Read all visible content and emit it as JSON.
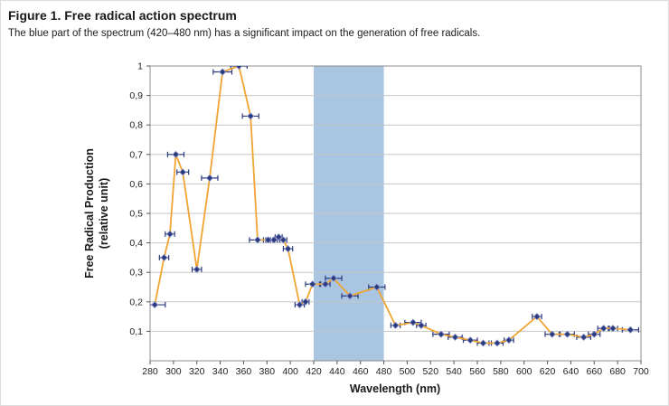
{
  "figure": {
    "title": "Figure 1. Free radical action spectrum",
    "subtitle": "The blue part of the spectrum (420–480 nm) has a significant impact on the generation of free radicals."
  },
  "chart_data": {
    "type": "line",
    "title": "Free radical action spectrum",
    "xlabel": "Wavelength (nm)",
    "ylabel": "Free Radical Production",
    "ylabel_line2": "(relative unit)",
    "xlim": [
      280,
      700
    ],
    "ylim": [
      0,
      1
    ],
    "x_ticks": [
      280,
      300,
      320,
      340,
      360,
      380,
      400,
      420,
      440,
      460,
      480,
      500,
      520,
      540,
      560,
      580,
      600,
      620,
      640,
      660,
      680,
      700
    ],
    "y_ticks": [
      0.1,
      0.2,
      0.3,
      0.4,
      0.5,
      0.6,
      0.7,
      0.8,
      0.9,
      1
    ],
    "y_tick_labels": [
      "0,1",
      "0,2",
      "0,3",
      "0,4",
      "0,5",
      "0,6",
      "0,7",
      "0,8",
      "0,9",
      "1"
    ],
    "grid": true,
    "legend": "none",
    "highlight_band": {
      "x_start": 420,
      "x_end": 480,
      "color": "#a9c5e2",
      "label": "blue part of the spectrum (420–480 nm)"
    },
    "colors": {
      "line": "#f0a432",
      "marker": "#2a3b7d",
      "marker_edge": "#8891c9",
      "grid": "#c6c6c6",
      "frame": "#8c8c8c"
    },
    "series": [
      {
        "name": "Free radical production (relative unit)",
        "marker": "diamond",
        "error_bars": "horizontal",
        "points": [
          {
            "x": 284,
            "y": 0.19,
            "xerr": 9
          },
          {
            "x": 292,
            "y": 0.35,
            "xerr": 4
          },
          {
            "x": 297,
            "y": 0.43,
            "xerr": 4
          },
          {
            "x": 302,
            "y": 0.7,
            "xerr": 7
          },
          {
            "x": 308,
            "y": 0.64,
            "xerr": 5
          },
          {
            "x": 320,
            "y": 0.31,
            "xerr": 4
          },
          {
            "x": 331,
            "y": 0.62,
            "xerr": 7
          },
          {
            "x": 342,
            "y": 0.98,
            "xerr": 8
          },
          {
            "x": 356,
            "y": 1.0,
            "xerr": 7
          },
          {
            "x": 366,
            "y": 0.83,
            "xerr": 7
          },
          {
            "x": 372,
            "y": 0.41,
            "xerr": 7
          },
          {
            "x": 381,
            "y": 0.41,
            "xerr": 4
          },
          {
            "x": 386,
            "y": 0.41,
            "xerr": 3
          },
          {
            "x": 390,
            "y": 0.42,
            "xerr": 3
          },
          {
            "x": 394,
            "y": 0.41,
            "xerr": 3
          },
          {
            "x": 398,
            "y": 0.38,
            "xerr": 4
          },
          {
            "x": 408,
            "y": 0.19,
            "xerr": 4
          },
          {
            "x": 413,
            "y": 0.2,
            "xerr": 3
          },
          {
            "x": 419,
            "y": 0.26,
            "xerr": 6
          },
          {
            "x": 430,
            "y": 0.26,
            "xerr": 4
          },
          {
            "x": 437,
            "y": 0.28,
            "xerr": 7
          },
          {
            "x": 451,
            "y": 0.22,
            "xerr": 7
          },
          {
            "x": 474,
            "y": 0.25,
            "xerr": 7
          },
          {
            "x": 490,
            "y": 0.12,
            "xerr": 4
          },
          {
            "x": 505,
            "y": 0.13,
            "xerr": 7
          },
          {
            "x": 512,
            "y": 0.12,
            "xerr": 4
          },
          {
            "x": 529,
            "y": 0.09,
            "xerr": 7
          },
          {
            "x": 541,
            "y": 0.08,
            "xerr": 6
          },
          {
            "x": 554,
            "y": 0.07,
            "xerr": 6
          },
          {
            "x": 565,
            "y": 0.06,
            "xerr": 5
          },
          {
            "x": 577,
            "y": 0.06,
            "xerr": 5
          },
          {
            "x": 587,
            "y": 0.07,
            "xerr": 4
          },
          {
            "x": 611,
            "y": 0.15,
            "xerr": 4
          },
          {
            "x": 624,
            "y": 0.09,
            "xerr": 6
          },
          {
            "x": 637,
            "y": 0.09,
            "xerr": 6
          },
          {
            "x": 651,
            "y": 0.08,
            "xerr": 6
          },
          {
            "x": 660,
            "y": 0.09,
            "xerr": 5
          },
          {
            "x": 668,
            "y": 0.11,
            "xerr": 5
          },
          {
            "x": 676,
            "y": 0.11,
            "xerr": 4
          },
          {
            "x": 691,
            "y": 0.105,
            "xerr": 7
          }
        ]
      }
    ]
  }
}
